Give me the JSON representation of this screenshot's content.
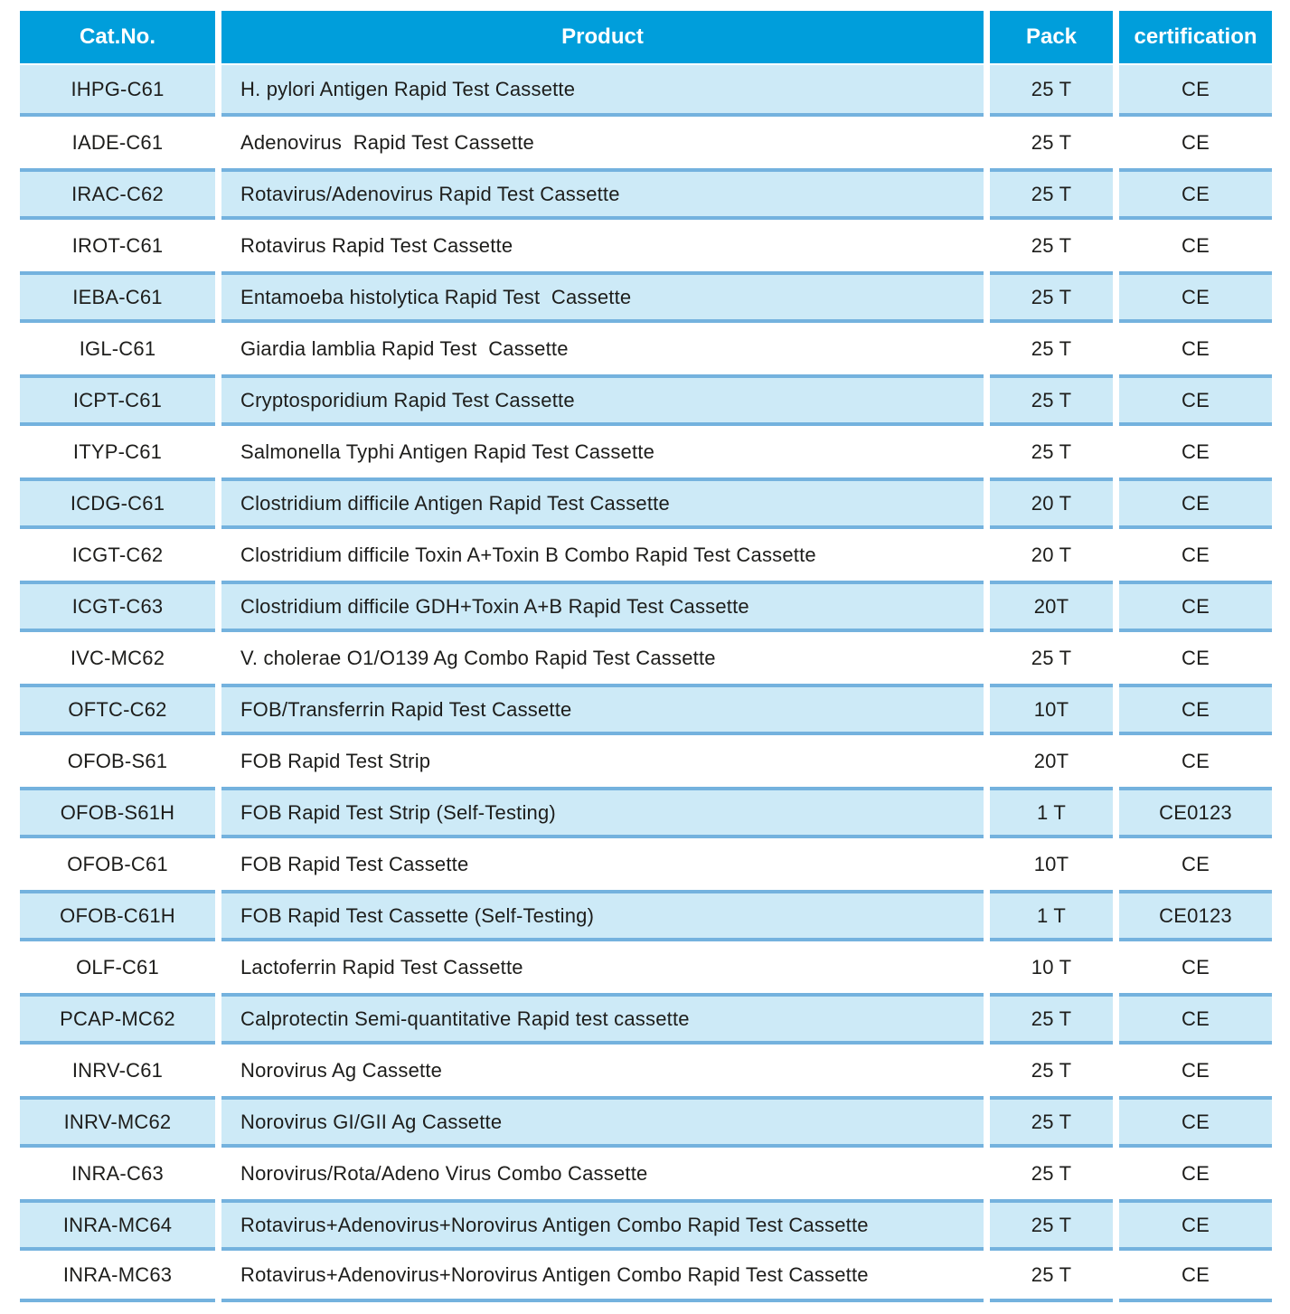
{
  "table": {
    "colors": {
      "header_bg": "#009EDB",
      "header_text": "#FFFFFF",
      "alt_row_bg": "#CDEAF7",
      "row_line": "#74B2DE",
      "body_text": "#1D1D1B"
    },
    "columns": [
      {
        "key": "cat_no",
        "label": "Cat.No."
      },
      {
        "key": "product",
        "label": "Product"
      },
      {
        "key": "pack",
        "label": "Pack"
      },
      {
        "key": "certification",
        "label": "certification"
      }
    ],
    "rows": [
      {
        "cat_no": "IHPG-C61",
        "product": "H. pylori Antigen Rapid Test Cassette",
        "pack": "25 T",
        "certification": "CE"
      },
      {
        "cat_no": "IADE-C61",
        "product": "Adenovirus  Rapid Test Cassette",
        "pack": "25 T",
        "certification": "CE"
      },
      {
        "cat_no": "IRAC-C62",
        "product": "Rotavirus/Adenovirus Rapid Test Cassette",
        "pack": "25 T",
        "certification": "CE"
      },
      {
        "cat_no": "IROT-C61",
        "product": "Rotavirus Rapid Test Cassette",
        "pack": "25 T",
        "certification": "CE"
      },
      {
        "cat_no": "IEBA-C61",
        "product": "Entamoeba histolytica Rapid Test  Cassette",
        "pack": "25 T",
        "certification": "CE"
      },
      {
        "cat_no": "IGL-C61",
        "product": "Giardia lamblia Rapid Test  Cassette",
        "pack": "25 T",
        "certification": "CE"
      },
      {
        "cat_no": "ICPT-C61",
        "product": "Cryptosporidium Rapid Test Cassette",
        "pack": "25 T",
        "certification": "CE"
      },
      {
        "cat_no": "ITYP-C61",
        "product": "Salmonella Typhi Antigen Rapid Test Cassette",
        "pack": "25 T",
        "certification": "CE"
      },
      {
        "cat_no": "ICDG-C61",
        "product": "Clostridium difficile Antigen Rapid Test Cassette",
        "pack": "20 T",
        "certification": "CE"
      },
      {
        "cat_no": "ICGT-C62",
        "product": "Clostridium difficile Toxin A+Toxin B Combo Rapid Test Cassette",
        "pack": "20 T",
        "certification": "CE"
      },
      {
        "cat_no": "ICGT-C63",
        "product": "Clostridium difficile GDH+Toxin A+B Rapid Test Cassette",
        "pack": "20T",
        "certification": "CE"
      },
      {
        "cat_no": "IVC-MC62",
        "product": "V. cholerae O1/O139 Ag Combo Rapid Test Cassette",
        "pack": "25 T",
        "certification": "CE"
      },
      {
        "cat_no": "OFTC-C62",
        "product": "FOB/Transferrin Rapid Test Cassette",
        "pack": "10T",
        "certification": "CE"
      },
      {
        "cat_no": "OFOB-S61",
        "product": "FOB Rapid Test Strip",
        "pack": "20T",
        "certification": "CE"
      },
      {
        "cat_no": "OFOB-S61H",
        "product": "FOB Rapid Test Strip (Self-Testing)",
        "pack": "1 T",
        "certification": "CE0123"
      },
      {
        "cat_no": "OFOB-C61",
        "product": "FOB Rapid Test Cassette",
        "pack": "10T",
        "certification": "CE"
      },
      {
        "cat_no": "OFOB-C61H",
        "product": "FOB Rapid Test Cassette (Self-Testing)",
        "pack": "1 T",
        "certification": "CE0123"
      },
      {
        "cat_no": "OLF-C61",
        "product": "Lactoferrin Rapid Test Cassette",
        "pack": "10 T",
        "certification": "CE"
      },
      {
        "cat_no": "PCAP-MC62",
        "product": "Calprotectin Semi-quantitative Rapid test cassette",
        "pack": "25 T",
        "certification": "CE"
      },
      {
        "cat_no": "INRV-C61",
        "product": "Norovirus Ag Cassette",
        "pack": "25 T",
        "certification": "CE"
      },
      {
        "cat_no": "INRV-MC62",
        "product": "Norovirus GI/GII Ag Cassette",
        "pack": "25 T",
        "certification": "CE"
      },
      {
        "cat_no": "INRA-C63",
        "product": "Norovirus/Rota/Adeno Virus Combo Cassette",
        "pack": "25 T",
        "certification": "CE"
      },
      {
        "cat_no": "INRA-MC64",
        "product": "Rotavirus+Adenovirus+Norovirus Antigen Combo Rapid Test Cassette",
        "pack": "25 T",
        "certification": "CE"
      },
      {
        "cat_no": "INRA-MC63",
        "product": "Rotavirus+Adenovirus+Norovirus Antigen Combo Rapid Test Cassette",
        "pack": "25 T",
        "certification": "CE"
      }
    ]
  }
}
